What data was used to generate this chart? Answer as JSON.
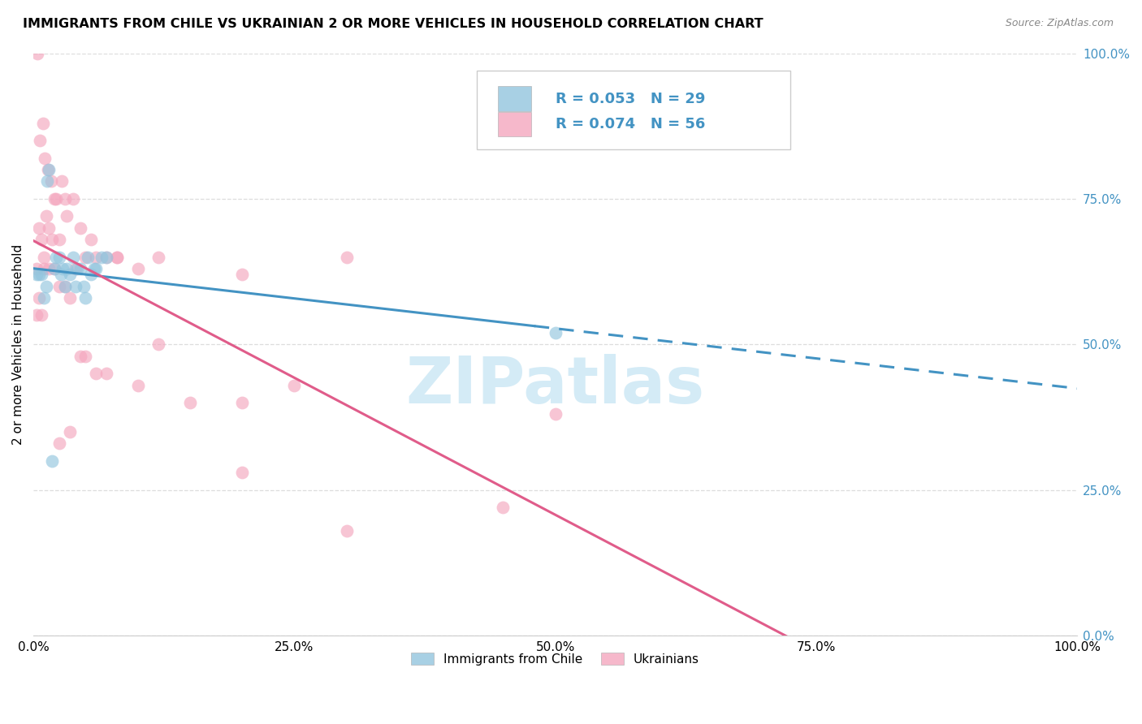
{
  "title": "IMMIGRANTS FROM CHILE VS UKRAINIAN 2 OR MORE VEHICLES IN HOUSEHOLD CORRELATION CHART",
  "source": "Source: ZipAtlas.com",
  "ylabel": "2 or more Vehicles in Household",
  "ytick_labels": [
    "0.0%",
    "25.0%",
    "50.0%",
    "75.0%",
    "100.0%"
  ],
  "ytick_values": [
    0,
    25,
    50,
    75,
    100
  ],
  "xtick_labels": [
    "0.0%",
    "25.0%",
    "50.0%",
    "75.0%",
    "100.0%"
  ],
  "xtick_values": [
    0,
    25,
    50,
    75,
    100
  ],
  "xlim": [
    0,
    100
  ],
  "ylim": [
    0,
    100
  ],
  "legend_label1": "Immigrants from Chile",
  "legend_label2": "Ukrainians",
  "R1": "0.053",
  "N1": "29",
  "R2": "0.074",
  "N2": "56",
  "color_blue": "#92c5de",
  "color_pink": "#f4a6be",
  "line_blue": "#4393c3",
  "line_pink": "#e05c8a",
  "watermark_color": "#cde8f5",
  "chile_x": [
    0.5,
    1.0,
    1.5,
    1.2,
    2.0,
    2.5,
    3.0,
    3.5,
    4.0,
    4.5,
    5.0,
    5.5,
    6.0,
    6.5,
    7.0,
    0.8,
    1.3,
    2.2,
    2.8,
    3.2,
    3.8,
    4.2,
    4.8,
    5.2,
    5.8,
    0.3,
    1.8,
    2.6,
    50.0
  ],
  "chile_y": [
    62,
    58,
    80,
    60,
    63,
    65,
    60,
    62,
    60,
    63,
    58,
    62,
    63,
    65,
    65,
    62,
    78,
    65,
    63,
    63,
    65,
    63,
    60,
    65,
    63,
    62,
    30,
    62,
    52
  ],
  "ukraine_x": [
    0.3,
    0.5,
    0.8,
    1.0,
    1.2,
    1.5,
    1.8,
    2.0,
    2.5,
    3.0,
    0.4,
    0.6,
    0.9,
    1.1,
    1.4,
    1.7,
    2.2,
    2.7,
    3.2,
    3.8,
    4.5,
    5.0,
    5.5,
    6.0,
    7.0,
    8.0,
    10.0,
    12.0,
    20.0,
    30.0,
    0.3,
    0.5,
    0.8,
    1.0,
    1.5,
    2.0,
    2.5,
    3.0,
    3.5,
    4.0,
    4.5,
    5.0,
    6.0,
    7.0,
    8.0,
    10.0,
    12.0,
    15.0,
    20.0,
    25.0,
    50.0,
    45.0,
    30.0,
    20.0,
    2.5,
    3.5
  ],
  "ukraine_y": [
    63,
    70,
    68,
    65,
    72,
    70,
    68,
    75,
    68,
    75,
    100,
    85,
    88,
    82,
    80,
    78,
    75,
    78,
    72,
    75,
    70,
    65,
    68,
    65,
    65,
    65,
    63,
    65,
    62,
    65,
    55,
    58,
    55,
    63,
    63,
    63,
    60,
    60,
    58,
    63,
    48,
    48,
    45,
    45,
    65,
    43,
    50,
    40,
    40,
    43,
    38,
    22,
    18,
    28,
    33,
    35
  ]
}
